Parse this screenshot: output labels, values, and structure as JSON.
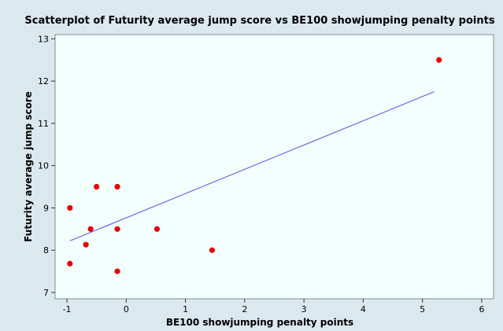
{
  "chart_data": {
    "type": "scatter",
    "title": "Scatterplot of Futurity average jump score vs BE100 showjumping penalty points",
    "xlabel": "BE100 showjumping penalty points",
    "ylabel": "Futurity average jump score",
    "xlim": [
      -1.2,
      6.2
    ],
    "ylim": [
      6.85,
      13.1
    ],
    "xticks": [
      "-1",
      "0",
      "1",
      "2",
      "3",
      "4",
      "5",
      "6"
    ],
    "yticks": [
      "7",
      "8",
      "9",
      "10",
      "11",
      "12",
      "13"
    ],
    "points": [
      {
        "x": -0.95,
        "y": 9.0
      },
      {
        "x": -0.95,
        "y": 7.68
      },
      {
        "x": -0.6,
        "y": 8.5
      },
      {
        "x": -0.68,
        "y": 8.13
      },
      {
        "x": -0.5,
        "y": 9.5
      },
      {
        "x": -0.15,
        "y": 9.5
      },
      {
        "x": -0.15,
        "y": 8.5
      },
      {
        "x": -0.15,
        "y": 7.5
      },
      {
        "x": 0.52,
        "y": 8.5
      },
      {
        "x": 1.45,
        "y": 8.0
      },
      {
        "x": 5.28,
        "y": 12.5
      }
    ],
    "fit_line": {
      "x": [
        -0.95,
        5.2
      ],
      "y": [
        8.22,
        11.75
      ]
    },
    "grid": false,
    "legend": "none",
    "colors": {
      "background": "#dbe8ee",
      "plot_background": "#f3fefe",
      "point": "#e60000",
      "fit_line": "#6b6bef"
    }
  }
}
